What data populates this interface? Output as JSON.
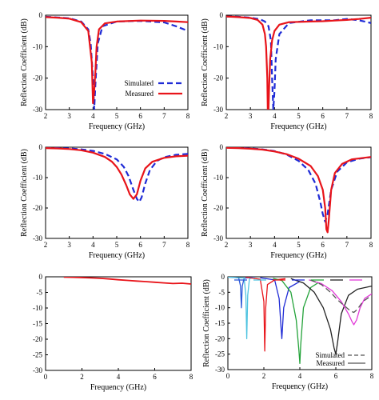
{
  "chart_data": [
    {
      "type": "line",
      "xlabel": "Frequency (GHz)",
      "ylabel": "Reflection Coefficient (dB)",
      "xlim": [
        2,
        8
      ],
      "ylim": [
        -30,
        0
      ],
      "xticks": [
        "2",
        "3",
        "4",
        "5",
        "6",
        "7",
        "8"
      ],
      "yticks": [
        "0",
        "-10",
        "-20",
        "-30"
      ],
      "legend": {
        "placement": "bottom-right",
        "entries": [
          "Simulated",
          "Measured"
        ]
      },
      "series": [
        {
          "name": "Simulated",
          "color": "#1f2bd6",
          "style": "dashed",
          "x": [
            2.0,
            2.5,
            3.0,
            3.5,
            3.8,
            3.9,
            4.0,
            4.05,
            4.1,
            4.2,
            4.4,
            5.0,
            6.0,
            7.0,
            7.5,
            8.0
          ],
          "y": [
            -0.5,
            -0.7,
            -1.0,
            -2.0,
            -4.5,
            -9.0,
            -20.0,
            -30.0,
            -22.0,
            -9.0,
            -3.5,
            -2.0,
            -1.8,
            -2.3,
            -3.5,
            -5.0
          ]
        },
        {
          "name": "Measured",
          "color": "#e8141a",
          "style": "solid",
          "x": [
            2.0,
            2.5,
            3.0,
            3.5,
            3.8,
            3.95,
            4.0,
            4.05,
            4.1,
            4.15,
            4.25,
            4.5,
            5.0,
            6.0,
            7.0,
            7.5,
            8.0
          ],
          "y": [
            -0.6,
            -0.8,
            -1.1,
            -2.2,
            -5.0,
            -15.0,
            -28.0,
            -24.0,
            -18.0,
            -10.0,
            -4.5,
            -2.6,
            -2.0,
            -1.7,
            -1.8,
            -2.0,
            -2.2
          ]
        }
      ]
    },
    {
      "type": "line",
      "xlabel": "Frequency (GHz)",
      "ylabel": "Reflection Coefficient (dB)",
      "xlim": [
        2,
        8
      ],
      "ylim": [
        -30,
        0
      ],
      "xticks": [
        "2",
        "3",
        "4",
        "5",
        "6",
        "7",
        "8"
      ],
      "yticks": [
        "0",
        "-10",
        "-20",
        "-30"
      ],
      "series": [
        {
          "name": "",
          "color": "#1f2bd6",
          "style": "dashed",
          "x": [
            2.0,
            2.5,
            3.0,
            3.4,
            3.6,
            3.75,
            3.85,
            3.9,
            3.95,
            4.0,
            4.05,
            4.2,
            4.6,
            5.5,
            6.5,
            7.0,
            7.5,
            8.0
          ],
          "y": [
            -0.4,
            -0.5,
            -0.8,
            -1.3,
            -2.0,
            -3.5,
            -8.0,
            -20.0,
            -30.0,
            -24.0,
            -14.0,
            -6.0,
            -2.5,
            -1.6,
            -1.6,
            -1.2,
            -1.6,
            -2.5
          ]
        },
        {
          "name": "",
          "color": "#e8141a",
          "style": "solid",
          "x": [
            2.0,
            2.5,
            3.0,
            3.3,
            3.5,
            3.6,
            3.65,
            3.7,
            3.72,
            3.75,
            3.78,
            3.82,
            3.9,
            4.0,
            4.2,
            4.6,
            5.5,
            6.0,
            6.5,
            7.0,
            7.5,
            8.0
          ],
          "y": [
            -0.4,
            -0.6,
            -0.9,
            -1.5,
            -3.0,
            -6.0,
            -10.0,
            -20.0,
            -30.0,
            -30.0,
            -22.0,
            -14.0,
            -8.0,
            -5.0,
            -3.0,
            -2.2,
            -2.0,
            -1.9,
            -1.7,
            -1.5,
            -1.2,
            -0.8
          ]
        }
      ]
    },
    {
      "type": "line",
      "xlabel": "Frequency (GHz)",
      "ylabel": "Reflection Coefficient (dB)",
      "xlim": [
        2,
        8
      ],
      "ylim": [
        -30,
        0
      ],
      "xticks": [
        "2",
        "3",
        "4",
        "5",
        "6",
        "7",
        "8"
      ],
      "yticks": [
        "0",
        "-10",
        "-20",
        "-30"
      ],
      "series": [
        {
          "name": "",
          "color": "#1f2bd6",
          "style": "dashed",
          "x": [
            2.0,
            2.5,
            3.0,
            3.5,
            4.0,
            4.5,
            5.0,
            5.3,
            5.5,
            5.7,
            5.85,
            5.95,
            6.05,
            6.2,
            6.4,
            6.7,
            7.0,
            7.5,
            8.0
          ],
          "y": [
            -0.2,
            -0.3,
            -0.4,
            -0.7,
            -1.2,
            -2.2,
            -4.0,
            -6.5,
            -9.5,
            -14.0,
            -17.0,
            -18.0,
            -16.5,
            -12.0,
            -7.5,
            -4.5,
            -3.3,
            -2.5,
            -2.2
          ]
        },
        {
          "name": "",
          "color": "#e8141a",
          "style": "solid",
          "x": [
            2.0,
            2.5,
            3.0,
            3.5,
            4.0,
            4.5,
            4.8,
            5.0,
            5.2,
            5.4,
            5.55,
            5.7,
            5.85,
            6.0,
            6.2,
            6.5,
            7.0,
            7.5,
            8.0
          ],
          "y": [
            -0.3,
            -0.4,
            -0.6,
            -1.0,
            -1.8,
            -3.2,
            -4.8,
            -6.5,
            -9.0,
            -12.5,
            -15.5,
            -17.0,
            -15.5,
            -11.0,
            -7.0,
            -4.8,
            -3.5,
            -3.0,
            -2.8
          ]
        }
      ]
    },
    {
      "type": "line",
      "xlabel": "Frequency (GHz)",
      "ylabel": "Reflection Coefficient (dB)",
      "xlim": [
        2,
        8
      ],
      "ylim": [
        -30,
        0
      ],
      "xticks": [
        "2",
        "3",
        "4",
        "5",
        "6",
        "7",
        "8"
      ],
      "yticks": [
        "0",
        "-10",
        "-20",
        "-30"
      ],
      "series": [
        {
          "name": "",
          "color": "#1f2bd6",
          "style": "dashed",
          "x": [
            2.0,
            2.5,
            3.0,
            3.5,
            4.0,
            4.5,
            5.0,
            5.4,
            5.7,
            5.9,
            6.0,
            6.1,
            6.2,
            6.35,
            6.6,
            7.0,
            7.5,
            8.0
          ],
          "y": [
            -0.1,
            -0.2,
            -0.4,
            -0.7,
            -1.3,
            -2.4,
            -4.5,
            -7.5,
            -12.0,
            -18.0,
            -22.0,
            -24.5,
            -22.0,
            -14.0,
            -8.0,
            -5.0,
            -3.8,
            -3.3
          ]
        },
        {
          "name": "",
          "color": "#e8141a",
          "style": "solid",
          "x": [
            2.0,
            2.5,
            3.0,
            3.5,
            4.0,
            4.5,
            5.0,
            5.5,
            5.8,
            6.0,
            6.1,
            6.15,
            6.2,
            6.25,
            6.35,
            6.5,
            6.8,
            7.2,
            8.0
          ],
          "y": [
            -0.2,
            -0.3,
            -0.5,
            -0.8,
            -1.4,
            -2.3,
            -3.8,
            -6.2,
            -9.5,
            -14.0,
            -20.0,
            -27.0,
            -28.0,
            -24.0,
            -14.0,
            -8.5,
            -5.5,
            -4.0,
            -3.2
          ]
        }
      ]
    },
    {
      "type": "line",
      "xlabel": "Frequency (GHz)",
      "ylabel": "",
      "xlim": [
        0,
        8
      ],
      "ylim": [
        -30,
        0
      ],
      "xticks": [
        "0",
        "2",
        "4",
        "6",
        "8"
      ],
      "yticks": [
        "0",
        "-5",
        "-10",
        "-15",
        "-20",
        "-25",
        "-30"
      ],
      "series": [
        {
          "name": "",
          "color": "#e8141a",
          "style": "solid",
          "x": [
            1.0,
            1.5,
            2.0,
            2.5,
            3.0,
            3.5,
            4.0,
            4.5,
            5.0,
            5.5,
            6.0,
            6.5,
            7.0,
            7.5,
            8.0
          ],
          "y": [
            -0.1,
            -0.15,
            -0.25,
            -0.35,
            -0.5,
            -0.7,
            -0.95,
            -1.15,
            -1.35,
            -1.55,
            -1.75,
            -1.95,
            -2.15,
            -2.05,
            -2.3
          ]
        }
      ]
    },
    {
      "type": "line",
      "xlabel": "Frequency (GHz)",
      "ylabel": "Reflection Coefficient (dB)",
      "xlim": [
        0,
        8
      ],
      "ylim": [
        -30,
        0
      ],
      "xticks": [
        "0",
        "2",
        "4",
        "6",
        "8"
      ],
      "yticks": [
        "0",
        "-5",
        "-10",
        "-15",
        "-20",
        "-25",
        "-30"
      ],
      "legend": {
        "placement": "bottom-right",
        "entries": [
          "Simulated",
          "Measured"
        ]
      },
      "series": [
        {
          "name": "",
          "color": "#2b58d8",
          "style": "solid",
          "x": [
            0.0,
            0.6,
            0.7,
            0.75,
            0.8,
            0.9,
            1.2,
            1.5
          ],
          "y": [
            -0.1,
            -0.3,
            -3.0,
            -10.0,
            -3.0,
            -0.5,
            -0.2,
            -0.1
          ]
        },
        {
          "name": "",
          "color": "#4dc3e0",
          "style": "solid",
          "x": [
            0.0,
            0.9,
            1.0,
            1.05,
            1.1,
            1.2,
            1.5
          ],
          "y": [
            -0.1,
            -0.4,
            -6.0,
            -20.0,
            -6.0,
            -0.6,
            -0.2
          ]
        },
        {
          "name": "",
          "color": "#e8141a",
          "style": "solid",
          "x": [
            1.0,
            1.8,
            2.0,
            2.05,
            2.1,
            2.2,
            2.6,
            3.2
          ],
          "y": [
            -0.1,
            -0.8,
            -8.0,
            -24.0,
            -10.0,
            -2.5,
            -1.0,
            -0.6
          ]
        },
        {
          "name": "",
          "color": "#1f2bd6",
          "style": "solid",
          "x": [
            1.8,
            2.6,
            2.85,
            2.95,
            3.0,
            3.1,
            3.4,
            4.0
          ],
          "y": [
            -0.3,
            -1.0,
            -7.0,
            -16.0,
            -20.0,
            -10.0,
            -3.5,
            -1.5
          ]
        },
        {
          "name": "",
          "color": "#24a33a",
          "style": "solid",
          "x": [
            2.5,
            3.0,
            3.5,
            3.8,
            3.95,
            4.0,
            4.05,
            4.2,
            4.6,
            5.0
          ],
          "y": [
            -0.5,
            -1.2,
            -5.0,
            -14.0,
            -24.0,
            -28.0,
            -22.0,
            -10.0,
            -3.5,
            -2.0
          ]
        },
        {
          "name": "",
          "color": "#222222",
          "style": "solid",
          "x": [
            3.5,
            4.2,
            4.8,
            5.3,
            5.7,
            5.9,
            6.0,
            6.1,
            6.3,
            6.7,
            7.2,
            8.0
          ],
          "y": [
            -0.6,
            -2.0,
            -5.0,
            -10.0,
            -17.0,
            -23.0,
            -25.0,
            -21.0,
            -12.0,
            -6.0,
            -4.0,
            -3.0
          ]
        },
        {
          "name": "",
          "color": "#e23ad8",
          "style": "solid",
          "x": [
            4.5,
            5.2,
            5.8,
            6.3,
            6.7,
            6.9,
            7.0,
            7.15,
            7.35,
            7.6,
            8.0
          ],
          "y": [
            -1.0,
            -2.2,
            -4.5,
            -8.0,
            -12.0,
            -14.5,
            -15.5,
            -14.0,
            -10.0,
            -7.0,
            -5.5
          ]
        },
        {
          "name": "Simulated",
          "color": "#555555",
          "style": "dashed",
          "x": [
            4.6,
            5.2,
            5.7,
            6.1,
            6.5,
            6.8,
            7.0,
            7.2,
            7.5,
            8.0
          ],
          "y": [
            -1.0,
            -2.5,
            -5.0,
            -7.5,
            -9.5,
            -11.0,
            -11.5,
            -10.5,
            -8.0,
            -6.0
          ]
        },
        {
          "name": "Measured",
          "color": "#555555",
          "style": "solid",
          "x": [],
          "y": []
        }
      ]
    }
  ]
}
